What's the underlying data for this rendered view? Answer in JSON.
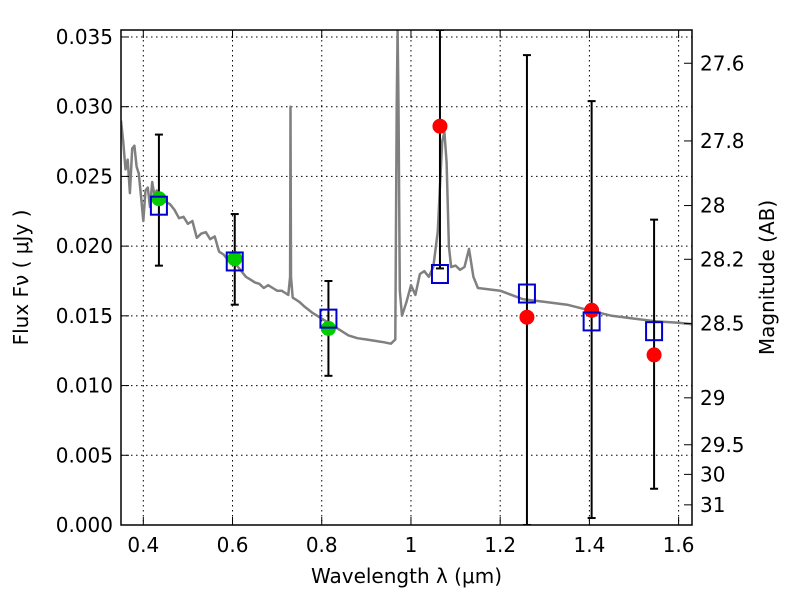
{
  "chart_data": {
    "type": "scatter",
    "xlabel": "Wavelength λ (μm)",
    "ylabel": "Flux Fν ( μJy )",
    "ylabel_right": "Magnitude (AB)",
    "xlim": [
      0.35,
      1.63
    ],
    "ylim": [
      0,
      0.0355
    ],
    "grid": true,
    "x_ticks": [
      {
        "value": 0.4,
        "label": "0.4"
      },
      {
        "value": 0.6,
        "label": "0.6"
      },
      {
        "value": 0.8,
        "label": "0.8"
      },
      {
        "value": 1.0,
        "label": "1"
      },
      {
        "value": 1.2,
        "label": "1.2"
      },
      {
        "value": 1.4,
        "label": "1.4"
      },
      {
        "value": 1.6,
        "label": "1.6"
      }
    ],
    "y_ticks": [
      {
        "value": 0.0,
        "label": "0.000"
      },
      {
        "value": 0.005,
        "label": "0.005"
      },
      {
        "value": 0.01,
        "label": "0.010"
      },
      {
        "value": 0.015,
        "label": "0.015"
      },
      {
        "value": 0.02,
        "label": "0.020"
      },
      {
        "value": 0.025,
        "label": "0.025"
      },
      {
        "value": 0.03,
        "label": "0.030"
      },
      {
        "value": 0.035,
        "label": "0.035"
      }
    ],
    "right_ticks": [
      {
        "mag": 27.6,
        "label": "27.6"
      },
      {
        "mag": 27.8,
        "label": "27.8"
      },
      {
        "mag": 28.0,
        "label": "28"
      },
      {
        "mag": 28.2,
        "label": "28.2"
      },
      {
        "mag": 28.5,
        "label": "28.5"
      },
      {
        "mag": 29.0,
        "label": "29"
      },
      {
        "mag": 29.5,
        "label": "29.5"
      },
      {
        "mag": 30.0,
        "label": "30"
      },
      {
        "mag": 31.0,
        "label": "31"
      }
    ],
    "colors": {
      "template": "#808080",
      "green_points": "#00cc00",
      "red_points": "#ff0000",
      "model_boxes": "#0000cc",
      "errorbars": "#000000"
    },
    "template_spectrum": {
      "x": [
        0.35,
        0.355,
        0.36,
        0.365,
        0.37,
        0.375,
        0.38,
        0.385,
        0.39,
        0.395,
        0.4,
        0.405,
        0.41,
        0.415,
        0.42,
        0.425,
        0.43,
        0.44,
        0.45,
        0.46,
        0.47,
        0.48,
        0.49,
        0.5,
        0.51,
        0.52,
        0.53,
        0.54,
        0.55,
        0.56,
        0.57,
        0.58,
        0.59,
        0.6,
        0.61,
        0.62,
        0.63,
        0.64,
        0.65,
        0.66,
        0.67,
        0.68,
        0.69,
        0.7,
        0.71,
        0.72,
        0.725,
        0.729,
        0.73,
        0.731,
        0.735,
        0.74,
        0.75,
        0.76,
        0.78,
        0.8,
        0.82,
        0.84,
        0.86,
        0.88,
        0.9,
        0.92,
        0.94,
        0.955,
        0.965,
        0.968,
        0.97,
        0.972,
        0.975,
        0.98,
        0.99,
        1.0,
        1.01,
        1.02,
        1.03,
        1.04,
        1.05,
        1.06,
        1.07,
        1.075,
        1.08,
        1.085,
        1.09,
        1.1,
        1.11,
        1.12,
        1.13,
        1.14,
        1.15,
        1.2,
        1.25,
        1.3,
        1.35,
        1.4,
        1.45,
        1.5,
        1.55,
        1.6,
        1.63
      ],
      "y": [
        0.029,
        0.0275,
        0.0255,
        0.0262,
        0.0238,
        0.027,
        0.0272,
        0.0257,
        0.0252,
        0.0235,
        0.0218,
        0.024,
        0.0242,
        0.0228,
        0.0246,
        0.0236,
        0.024,
        0.0234,
        0.0232,
        0.023,
        0.0226,
        0.022,
        0.0221,
        0.0216,
        0.0218,
        0.0206,
        0.0209,
        0.021,
        0.0205,
        0.0207,
        0.0196,
        0.0194,
        0.019,
        0.0187,
        0.0186,
        0.0182,
        0.0178,
        0.0176,
        0.0174,
        0.0173,
        0.017,
        0.0172,
        0.017,
        0.0168,
        0.0168,
        0.0166,
        0.0165,
        0.0178,
        0.03,
        0.0178,
        0.0163,
        0.0162,
        0.016,
        0.0157,
        0.0152,
        0.0148,
        0.0144,
        0.014,
        0.0136,
        0.0134,
        0.0133,
        0.0132,
        0.0131,
        0.013,
        0.0133,
        0.03,
        0.0355,
        0.03,
        0.0168,
        0.015,
        0.016,
        0.0172,
        0.0165,
        0.018,
        0.0182,
        0.0178,
        0.0185,
        0.021,
        0.0275,
        0.0282,
        0.026,
        0.02,
        0.0185,
        0.0186,
        0.0183,
        0.0185,
        0.0198,
        0.0178,
        0.017,
        0.0168,
        0.0162,
        0.016,
        0.0158,
        0.0154,
        0.015,
        0.0148,
        0.0146,
        0.0145,
        0.0144
      ]
    },
    "series": [
      {
        "marker": "circle-green",
        "points": [
          {
            "x": 0.435,
            "y": 0.0234
          },
          {
            "x": 0.605,
            "y": 0.0191
          },
          {
            "x": 0.815,
            "y": 0.0141
          }
        ]
      },
      {
        "marker": "circle-red",
        "points": [
          {
            "x": 1.065,
            "y": 0.0286
          },
          {
            "x": 1.26,
            "y": 0.0149
          },
          {
            "x": 1.405,
            "y": 0.0154
          },
          {
            "x": 1.545,
            "y": 0.0122
          }
        ]
      },
      {
        "marker": "square-blue",
        "points": [
          {
            "x": 0.435,
            "y": 0.0229
          },
          {
            "x": 0.605,
            "y": 0.0189
          },
          {
            "x": 0.815,
            "y": 0.0148
          },
          {
            "x": 1.065,
            "y": 0.018
          },
          {
            "x": 1.26,
            "y": 0.0166
          },
          {
            "x": 1.405,
            "y": 0.0146
          },
          {
            "x": 1.545,
            "y": 0.0139
          }
        ]
      }
    ],
    "errorbars": [
      {
        "x": 0.435,
        "low": 0.0186,
        "high": 0.028
      },
      {
        "x": 0.605,
        "low": 0.0158,
        "high": 0.0223
      },
      {
        "x": 0.815,
        "low": 0.0107,
        "high": 0.0175
      },
      {
        "x": 1.065,
        "low": 0.0184,
        "high": 0.0355
      },
      {
        "x": 1.26,
        "low": 0.0,
        "high": 0.0337
      },
      {
        "x": 1.405,
        "low": 0.0005,
        "high": 0.0304
      },
      {
        "x": 1.545,
        "low": 0.0026,
        "high": 0.0219
      }
    ]
  }
}
